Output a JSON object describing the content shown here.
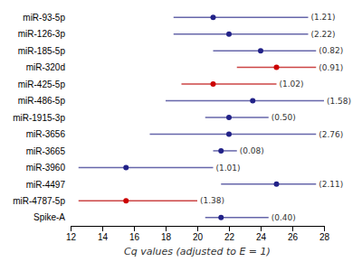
{
  "chart_data": {
    "type": "dot_range",
    "categories": [
      "miR-93-5p",
      "miR-126-3p",
      "miR-185-5p",
      "miR-320d",
      "miR-425-5p",
      "miR-486-5p",
      "miR-1915-3p",
      "miR-3656",
      "miR-3665",
      "miR-3960",
      "miR-4497",
      "miR-4787-5p",
      "Spike-A"
    ],
    "series": [
      {
        "type": "range",
        "low": [
          18.5,
          18.5,
          21.0,
          22.5,
          19.0,
          18.0,
          20.5,
          17.0,
          21.0,
          12.5,
          21.5,
          12.5,
          20.5
        ],
        "high": [
          27.0,
          27.0,
          27.5,
          27.5,
          25.0,
          28.0,
          24.5,
          27.5,
          22.5,
          21.0,
          27.5,
          20.0,
          24.5
        ],
        "colors": [
          "#6666aa",
          "#6666aa",
          "#6666aa",
          "#cc4444",
          "#cc4444",
          "#6666aa",
          "#6666aa",
          "#6666aa",
          "#6666aa",
          "#6666aa",
          "#6666aa",
          "#cc4444",
          "#6666aa"
        ]
      },
      {
        "type": "scatter",
        "values": [
          21.0,
          22.0,
          24.0,
          25.0,
          21.0,
          23.5,
          22.0,
          22.0,
          21.5,
          15.5,
          25.0,
          15.5,
          21.5
        ],
        "colors": [
          "#222288",
          "#222288",
          "#222288",
          "#cc0000",
          "#cc0000",
          "#222288",
          "#222288",
          "#222288",
          "#222288",
          "#222288",
          "#222288",
          "#cc0000",
          "#222288"
        ]
      }
    ],
    "annotations": [
      "(1.21)",
      "(2.22)",
      "(0.82)",
      "(0.91)",
      "(1.02)",
      "(1.58)",
      "(0.50)",
      "(2.76)",
      "(0.08)",
      "(1.01)",
      "(2.11)",
      "(1.38)",
      "(0.40)"
    ],
    "xlabel": "Cq values (adjusted to E = 1)",
    "xlim": [
      12,
      28
    ],
    "xticks": [
      12,
      14,
      16,
      18,
      20,
      22,
      24,
      26,
      28
    ],
    "grid": false
  }
}
